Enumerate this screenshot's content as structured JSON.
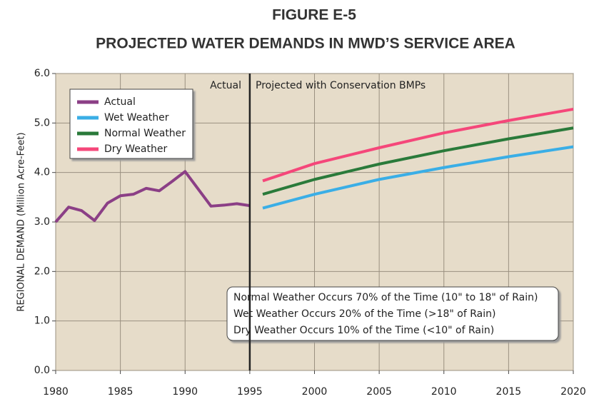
{
  "chart_data": {
    "type": "line",
    "title": "FIGURE E-5",
    "subtitle": "PROJECTED WATER DEMANDS IN MWD’S SERVICE AREA",
    "y_label": "REGIONAL DEMAND (Million Acre-Feet)",
    "x": [
      1980,
      1981,
      1982,
      1983,
      1984,
      1985,
      1986,
      1987,
      1988,
      1989,
      1990,
      1991,
      1992,
      1993,
      1994,
      1995,
      1996,
      2000,
      2005,
      2010,
      2015,
      2020
    ],
    "series": [
      {
        "name": "Actual",
        "color": "#8b3f86",
        "values": [
          3.0,
          3.3,
          3.23,
          3.03,
          3.38,
          3.53,
          3.56,
          3.68,
          3.63,
          3.82,
          4.02,
          3.67,
          3.32,
          3.34,
          3.37,
          3.33,
          null,
          null,
          null,
          null,
          null,
          null
        ]
      },
      {
        "name": "Wet Weather",
        "color": "#3aaee6",
        "values": [
          null,
          null,
          null,
          null,
          null,
          null,
          null,
          null,
          null,
          null,
          null,
          null,
          null,
          null,
          null,
          null,
          3.28,
          3.56,
          3.86,
          4.1,
          4.32,
          4.52
        ]
      },
      {
        "name": "Normal Weather",
        "color": "#2a7a3a",
        "values": [
          null,
          null,
          null,
          null,
          null,
          null,
          null,
          null,
          null,
          null,
          null,
          null,
          null,
          null,
          null,
          null,
          3.56,
          3.86,
          4.17,
          4.44,
          4.68,
          4.9
        ]
      },
      {
        "name": "Dry Weather",
        "color": "#f5477a",
        "values": [
          null,
          null,
          null,
          null,
          null,
          null,
          null,
          null,
          null,
          null,
          null,
          null,
          null,
          null,
          null,
          null,
          3.83,
          4.18,
          4.5,
          4.8,
          5.05,
          5.28
        ]
      }
    ],
    "xlim": [
      1980,
      2020
    ],
    "xticks": [
      1980,
      1985,
      1990,
      1995,
      2000,
      2005,
      2010,
      2015,
      2020
    ],
    "ylim": [
      0,
      6
    ],
    "yticks": [
      {
        "value": 0,
        "label": "0.0"
      },
      {
        "value": 1,
        "label": "1.0"
      },
      {
        "value": 2,
        "label": "2.0"
      },
      {
        "value": 3,
        "label": "3.0"
      },
      {
        "value": 4,
        "label": "4.0"
      },
      {
        "value": 5,
        "label": "5.0"
      },
      {
        "value": 6,
        "label": "6.0"
      }
    ],
    "grid": true,
    "divider_x": 1995,
    "annotations": [
      "Actual",
      "Projected with Conservation BMPs"
    ],
    "note_lines": [
      "Normal Weather Occurs 70% of the Time (10\" to 18\" of Rain)",
      "Wet Weather Occurs 20% of the Time (>18\" of Rain)",
      "Dry Weather Occurs 10% of the Time (<10\" of Rain)"
    ]
  }
}
